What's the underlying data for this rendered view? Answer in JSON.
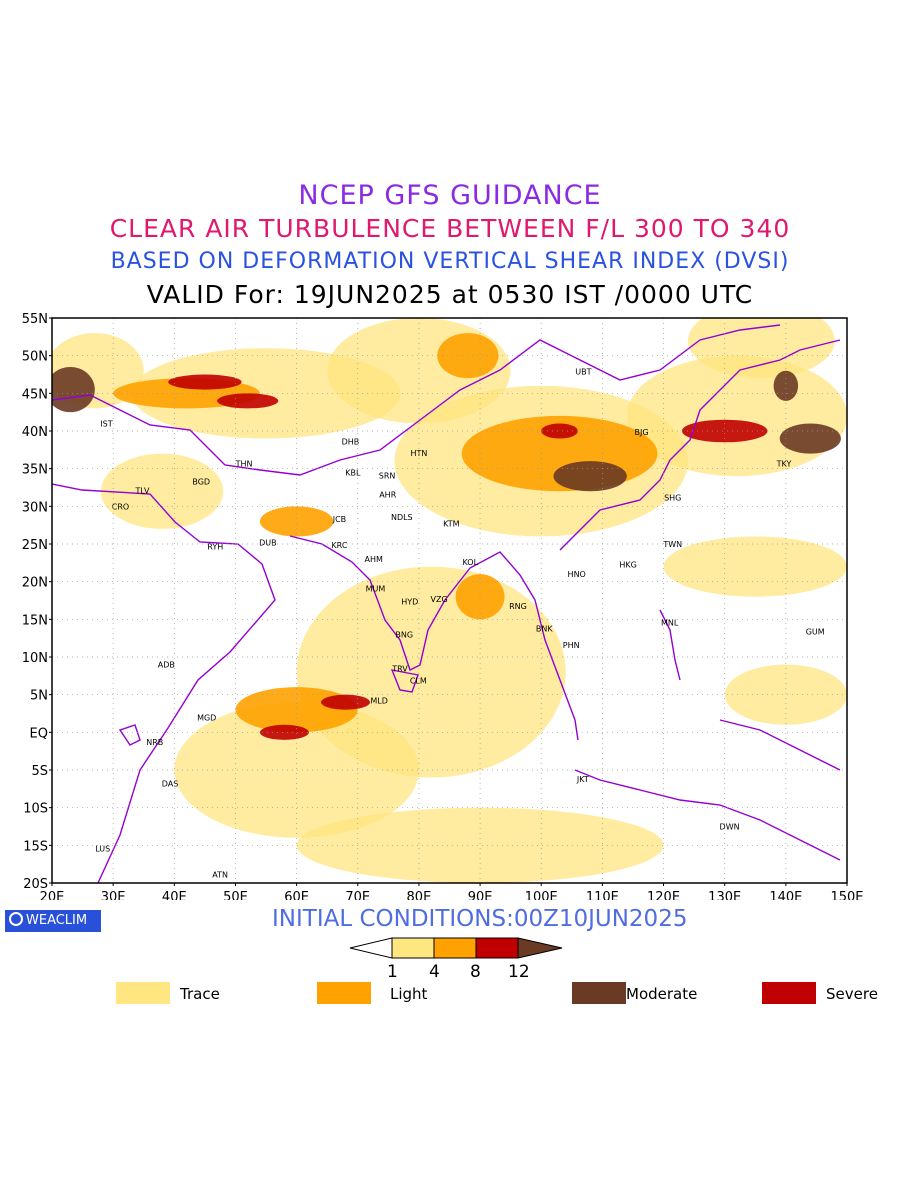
{
  "titles": {
    "line1": "NCEP GFS GUIDANCE",
    "line2": "CLEAR AIR TURBULENCE BETWEEN F/L 300 TO 340",
    "line3": "BASED ON DEFORMATION VERTICAL SHEAR INDEX (DVSI)",
    "line4": "VALID For: 19JUN2025 at 0530 IST /0000 UTC"
  },
  "latitude_ticks": [
    "55N",
    "50N",
    "45N",
    "40N",
    "35N",
    "30N",
    "25N",
    "20N",
    "15N",
    "10N",
    "5N",
    "EQ",
    "5S",
    "10S",
    "15S",
    "20S"
  ],
  "longitude_ticks": [
    "20E",
    "30E",
    "40E",
    "50E",
    "60E",
    "70E",
    "80E",
    "90E",
    "100E",
    "110E",
    "120E",
    "130E",
    "140E",
    "150E"
  ],
  "stations": [
    {
      "code": "UBT",
      "lon": 106.9,
      "lat": 47.9
    },
    {
      "code": "BJG",
      "lon": 116.4,
      "lat": 39.9
    },
    {
      "code": "TKY",
      "lon": 139.7,
      "lat": 35.7
    },
    {
      "code": "SHG",
      "lon": 121.5,
      "lat": 31.2
    },
    {
      "code": "TWN",
      "lon": 121.5,
      "lat": 25.0
    },
    {
      "code": "HKG",
      "lon": 114.2,
      "lat": 22.3
    },
    {
      "code": "HNO",
      "lon": 105.8,
      "lat": 21.0
    },
    {
      "code": "RNG",
      "lon": 96.2,
      "lat": 16.8
    },
    {
      "code": "BNK",
      "lon": 100.5,
      "lat": 13.8
    },
    {
      "code": "PHN",
      "lon": 104.9,
      "lat": 11.6
    },
    {
      "code": "MNL",
      "lon": 121.0,
      "lat": 14.6
    },
    {
      "code": "GUM",
      "lon": 144.8,
      "lat": 13.4
    },
    {
      "code": "JKT",
      "lon": 106.8,
      "lat": -6.2
    },
    {
      "code": "DWN",
      "lon": 130.8,
      "lat": -12.5
    },
    {
      "code": "IST",
      "lon": 28.9,
      "lat": 41.0
    },
    {
      "code": "TLV",
      "lon": 34.8,
      "lat": 32.1
    },
    {
      "code": "CRO",
      "lon": 31.2,
      "lat": 30.0
    },
    {
      "code": "BGD",
      "lon": 44.4,
      "lat": 33.3
    },
    {
      "code": "THN",
      "lon": 51.4,
      "lat": 35.7
    },
    {
      "code": "RYH",
      "lon": 46.7,
      "lat": 24.7
    },
    {
      "code": "DUB",
      "lon": 55.3,
      "lat": 25.2
    },
    {
      "code": "DHB",
      "lon": 68.8,
      "lat": 38.6
    },
    {
      "code": "KBL",
      "lon": 69.2,
      "lat": 34.5
    },
    {
      "code": "SRN",
      "lon": 74.8,
      "lat": 34.1
    },
    {
      "code": "HTN",
      "lon": 80.0,
      "lat": 37.1
    },
    {
      "code": "AHR",
      "lon": 74.9,
      "lat": 31.6
    },
    {
      "code": "JCB",
      "lon": 67.0,
      "lat": 28.3
    },
    {
      "code": "NDLS",
      "lon": 77.2,
      "lat": 28.6
    },
    {
      "code": "KRC",
      "lon": 67.0,
      "lat": 24.9
    },
    {
      "code": "AHM",
      "lon": 72.6,
      "lat": 23.0
    },
    {
      "code": "KTM",
      "lon": 85.3,
      "lat": 27.7
    },
    {
      "code": "KOL",
      "lon": 88.4,
      "lat": 22.6
    },
    {
      "code": "MUM",
      "lon": 72.9,
      "lat": 19.1
    },
    {
      "code": "HYD",
      "lon": 78.5,
      "lat": 17.4
    },
    {
      "code": "VZG",
      "lon": 83.3,
      "lat": 17.7
    },
    {
      "code": "BNG",
      "lon": 77.6,
      "lat": 13.0
    },
    {
      "code": "TRV",
      "lon": 76.9,
      "lat": 8.5
    },
    {
      "code": "CLM",
      "lon": 79.9,
      "lat": 6.9
    },
    {
      "code": "MLD",
      "lon": 73.5,
      "lat": 4.2
    },
    {
      "code": "ADB",
      "lon": 38.7,
      "lat": 9.0
    },
    {
      "code": "MGD",
      "lon": 45.3,
      "lat": 2.0
    },
    {
      "code": "NRB",
      "lon": 36.8,
      "lat": -1.3
    },
    {
      "code": "DAS",
      "lon": 39.3,
      "lat": -6.8
    },
    {
      "code": "LUS",
      "lon": 28.3,
      "lat": -15.4
    },
    {
      "code": "ATN",
      "lon": 47.5,
      "lat": -18.9
    }
  ],
  "turbulence_areas": [
    {
      "lon": 23,
      "lat": 45.5,
      "level": "moderate",
      "rx": 4,
      "ry": 3
    },
    {
      "lon": 27,
      "lat": 48,
      "level": "trace",
      "rx": 8,
      "ry": 5
    },
    {
      "lon": 42,
      "lat": 45,
      "level": "light",
      "rx": 12,
      "ry": 2
    },
    {
      "lon": 45,
      "lat": 46.5,
      "level": "severe",
      "rx": 6,
      "ry": 1
    },
    {
      "lon": 52,
      "lat": 44,
      "level": "severe",
      "rx": 5,
      "ry": 1
    },
    {
      "lon": 55,
      "lat": 45,
      "level": "trace",
      "rx": 22,
      "ry": 6
    },
    {
      "lon": 38,
      "lat": 32,
      "level": "trace",
      "rx": 10,
      "ry": 5
    },
    {
      "lon": 60,
      "lat": 28,
      "level": "light",
      "rx": 6,
      "ry": 2
    },
    {
      "lon": 88,
      "lat": 50,
      "level": "light",
      "rx": 5,
      "ry": 3
    },
    {
      "lon": 80,
      "lat": 48,
      "level": "trace",
      "rx": 15,
      "ry": 7
    },
    {
      "lon": 103,
      "lat": 37,
      "level": "light",
      "rx": 16,
      "ry": 5
    },
    {
      "lon": 108,
      "lat": 34,
      "level": "moderate",
      "rx": 6,
      "ry": 2
    },
    {
      "lon": 103,
      "lat": 40,
      "level": "severe",
      "rx": 3,
      "ry": 1
    },
    {
      "lon": 100,
      "lat": 36,
      "level": "trace",
      "rx": 24,
      "ry": 10
    },
    {
      "lon": 130,
      "lat": 40,
      "level": "severe",
      "rx": 7,
      "ry": 1.5
    },
    {
      "lon": 144,
      "lat": 39,
      "level": "moderate",
      "rx": 5,
      "ry": 2
    },
    {
      "lon": 132,
      "lat": 42,
      "level": "trace",
      "rx": 18,
      "ry": 8
    },
    {
      "lon": 136,
      "lat": 52,
      "level": "trace",
      "rx": 12,
      "ry": 5
    },
    {
      "lon": 140,
      "lat": 46,
      "level": "moderate",
      "rx": 2,
      "ry": 2
    },
    {
      "lon": 82,
      "lat": 8,
      "level": "trace",
      "rx": 22,
      "ry": 14
    },
    {
      "lon": 60,
      "lat": 3,
      "level": "light",
      "rx": 10,
      "ry": 3
    },
    {
      "lon": 58,
      "lat": 0,
      "level": "severe",
      "rx": 4,
      "ry": 1
    },
    {
      "lon": 68,
      "lat": 4,
      "level": "severe",
      "rx": 4,
      "ry": 1
    },
    {
      "lon": 60,
      "lat": -5,
      "level": "trace",
      "rx": 20,
      "ry": 9
    },
    {
      "lon": 90,
      "lat": -15,
      "level": "trace",
      "rx": 30,
      "ry": 5
    },
    {
      "lon": 135,
      "lat": 22,
      "level": "trace",
      "rx": 15,
      "ry": 4
    },
    {
      "lon": 140,
      "lat": 5,
      "level": "trace",
      "rx": 10,
      "ry": 4
    },
    {
      "lon": 90,
      "lat": 18,
      "level": "light",
      "rx": 4,
      "ry": 3
    }
  ],
  "colors": {
    "trace": "#ffe680",
    "light": "#ffa200",
    "moderate": "#6a3a24",
    "severe": "#c00000",
    "borders": "#9400d3"
  },
  "init": "INITIAL CONDITIONS:00Z10JUN2025",
  "logo": "WEACLIM",
  "colorbar": {
    "labels": [
      "1",
      "4",
      "8",
      "12"
    ],
    "colors": [
      "#ffe680",
      "#ffa200",
      "#c00000"
    ]
  },
  "legend": [
    {
      "label": "Trace",
      "color": "#ffe680"
    },
    {
      "label": "Light",
      "color": "#ffa200"
    },
    {
      "label": "Moderate",
      "color": "#6a3a24"
    },
    {
      "label": "Severe",
      "color": "#c00000"
    }
  ]
}
